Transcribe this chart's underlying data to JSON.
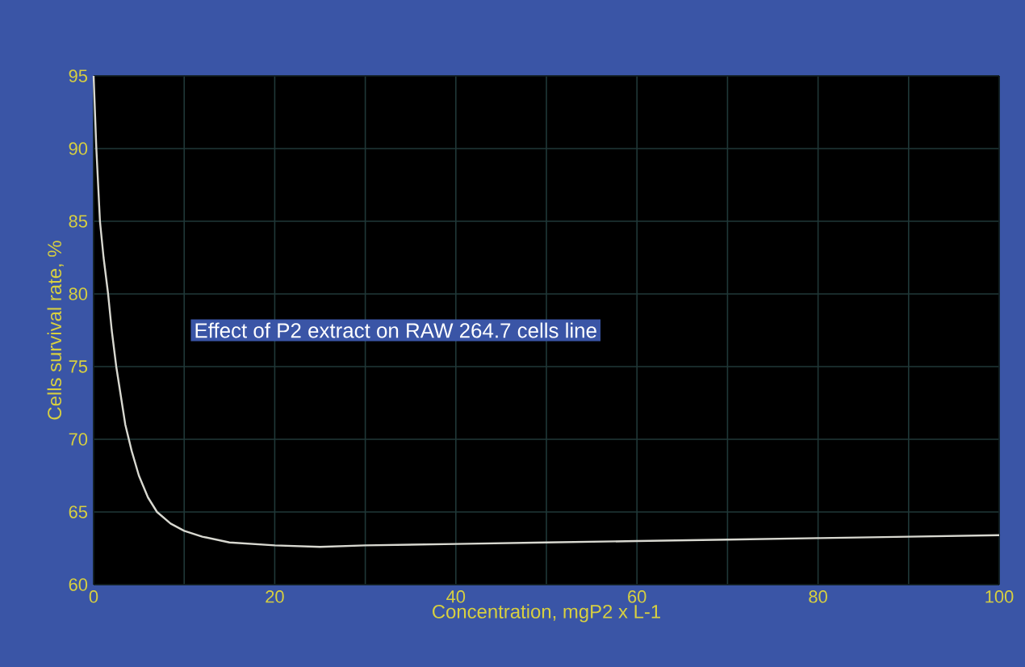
{
  "chart_data": {
    "type": "line",
    "xlabel": "Concentration, mgP2 x L-1",
    "ylabel": "Cells survival rate, %",
    "annotations": [
      "Effect of P2 extract on RAW 264.7 cells line"
    ],
    "x": [
      0,
      0.3,
      0.7,
      1.1,
      1.6,
      2.0,
      2.5,
      3.0,
      3.5,
      4.2,
      5,
      6,
      7,
      8.5,
      10,
      12,
      15,
      20,
      25,
      30,
      40,
      50,
      60,
      70,
      80,
      90,
      100
    ],
    "series": [
      {
        "color": "#d8d8d0",
        "values": [
          95,
          90,
          85,
          82.5,
          80,
          77.5,
          75,
          73,
          71,
          69.2,
          67.5,
          66,
          65,
          64.2,
          63.7,
          63.3,
          62.9,
          62.7,
          62.6,
          62.7,
          62.8,
          62.9,
          63.0,
          63.1,
          63.2,
          63.3,
          63.4
        ]
      }
    ],
    "xlim": [
      0,
      100
    ],
    "ylim": [
      60,
      95
    ],
    "xticks": [
      0,
      20,
      40,
      60,
      80,
      100
    ],
    "yticks": [
      60,
      65,
      70,
      75,
      80,
      85,
      90,
      95
    ],
    "grid": true,
    "line_style": "solid",
    "marker": "none"
  }
}
